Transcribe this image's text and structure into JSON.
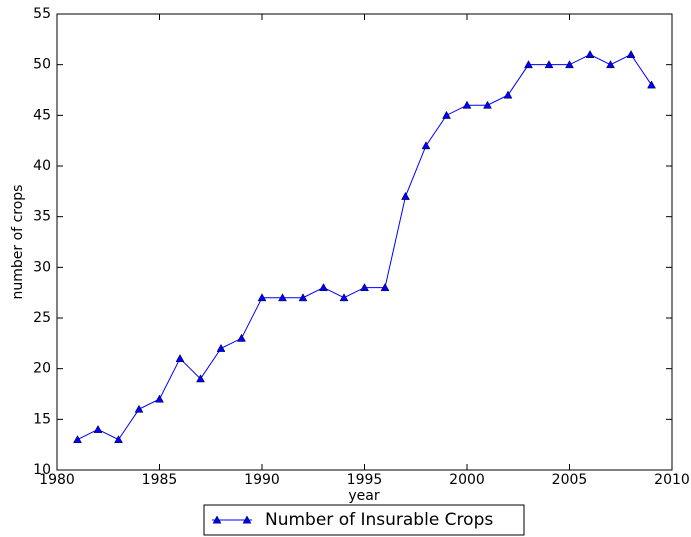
{
  "chart_data": {
    "type": "line",
    "x_label": "year",
    "y_label": "number of crops",
    "x": [
      1981,
      1982,
      1983,
      1984,
      1985,
      1986,
      1987,
      1988,
      1989,
      1990,
      1991,
      1992,
      1993,
      1994,
      1995,
      1996,
      1997,
      1998,
      1999,
      2000,
      2001,
      2002,
      2003,
      2004,
      2005,
      2006,
      2007,
      2008,
      2009
    ],
    "series": [
      {
        "name": "Number of Insurable Crops",
        "color": "#0000ff",
        "marker": "triangle",
        "values": [
          13,
          14,
          13,
          16,
          17,
          21,
          19,
          22,
          23,
          27,
          27,
          27,
          28,
          27,
          28,
          28,
          37,
          42,
          45,
          46,
          46,
          47,
          50,
          50,
          50,
          51,
          50,
          51,
          48
        ]
      }
    ],
    "xlim": [
      1980,
      2010
    ],
    "xticks": [
      1980,
      1985,
      1990,
      1995,
      2000,
      2005,
      2010
    ],
    "ylim": [
      10,
      55
    ],
    "yticks": [
      10,
      15,
      20,
      25,
      30,
      35,
      40,
      45,
      50,
      55
    ],
    "legend": "bottom-center-outside"
  }
}
